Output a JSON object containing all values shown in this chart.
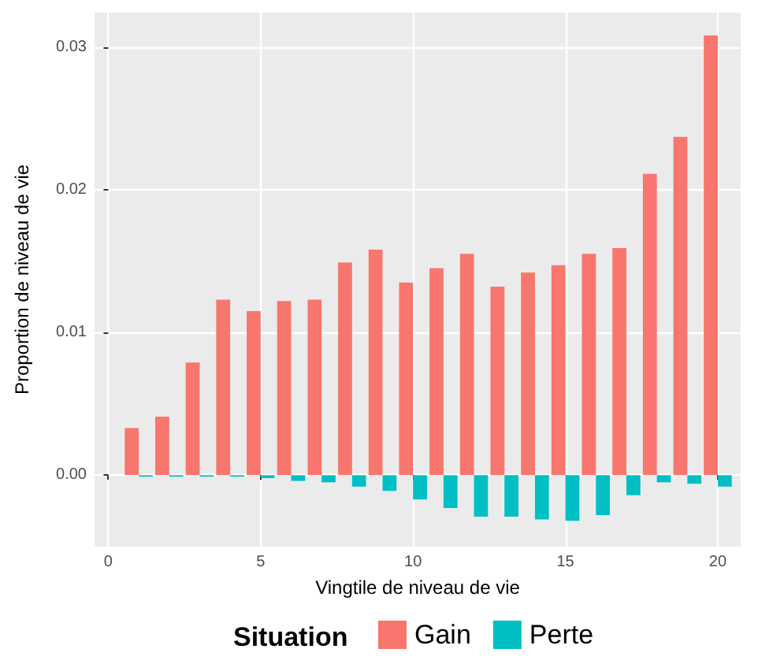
{
  "chart_data": {
    "type": "bar",
    "xlabel": "Vingtile de niveau de vie",
    "ylabel": "Proportion de niveau de vie",
    "legend_title": "Situation",
    "x": [
      1,
      2,
      3,
      4,
      5,
      6,
      7,
      8,
      9,
      10,
      11,
      12,
      13,
      14,
      15,
      16,
      17,
      18,
      19,
      20
    ],
    "series": [
      {
        "name": "Gain",
        "color": "#f8766d",
        "values": [
          0.0033,
          0.0041,
          0.0079,
          0.0123,
          0.0115,
          0.0122,
          0.0123,
          0.0149,
          0.0158,
          0.0135,
          0.0145,
          0.0155,
          0.0132,
          0.0142,
          0.0147,
          0.0155,
          0.0159,
          0.0211,
          0.0237,
          0.0308
        ]
      },
      {
        "name": "Perte",
        "color": "#00bfc4",
        "values": [
          -0.0001,
          -0.0001,
          -0.0001,
          -0.0001,
          -0.0002,
          -0.0004,
          -0.0005,
          -0.0008,
          -0.0011,
          -0.0017,
          -0.0023,
          -0.0029,
          -0.0029,
          -0.0031,
          -0.0032,
          -0.0028,
          -0.0014,
          -0.0005,
          -0.0006,
          -0.0008
        ]
      }
    ],
    "xlim": [
      -0.45,
      20.75
    ],
    "xticks": [
      0,
      5,
      10,
      15,
      20
    ],
    "ylim": [
      -0.005,
      0.0324
    ],
    "yticks": [
      {
        "value": 0,
        "label": "0.00"
      },
      {
        "value": 0.01,
        "label": "0.01"
      },
      {
        "value": 0.02,
        "label": "0.02"
      },
      {
        "value": 0.03,
        "label": "0.03"
      }
    ],
    "grid": true,
    "legend": "bottom"
  }
}
